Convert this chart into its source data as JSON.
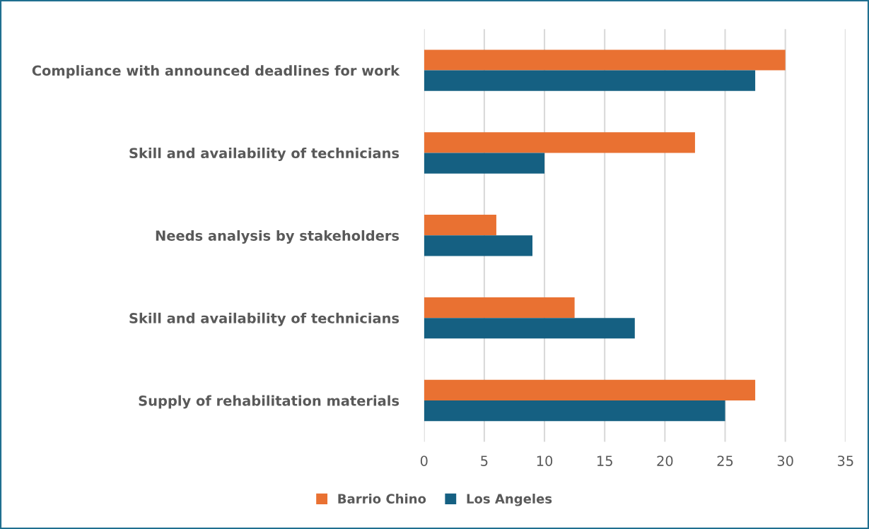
{
  "chart_data": {
    "type": "bar",
    "orientation": "horizontal",
    "categories": [
      "Compliance with announced deadlines for work",
      "Skill and availability of technicians",
      "Needs analysis by stakeholders",
      "Skill and availability of technicians",
      "Supply of rehabilitation materials"
    ],
    "series": [
      {
        "name": "Barrio Chino",
        "color": "#e97132",
        "values": [
          30,
          22.5,
          6,
          12.5,
          27.5
        ]
      },
      {
        "name": "Los Angeles",
        "color": "#156082",
        "values": [
          27.5,
          10,
          9,
          17.5,
          25
        ]
      }
    ],
    "xlim": [
      0,
      35
    ],
    "xticks": [
      0,
      5,
      10,
      15,
      20,
      25,
      30,
      35
    ],
    "grid": "x",
    "legend": "bottom"
  }
}
